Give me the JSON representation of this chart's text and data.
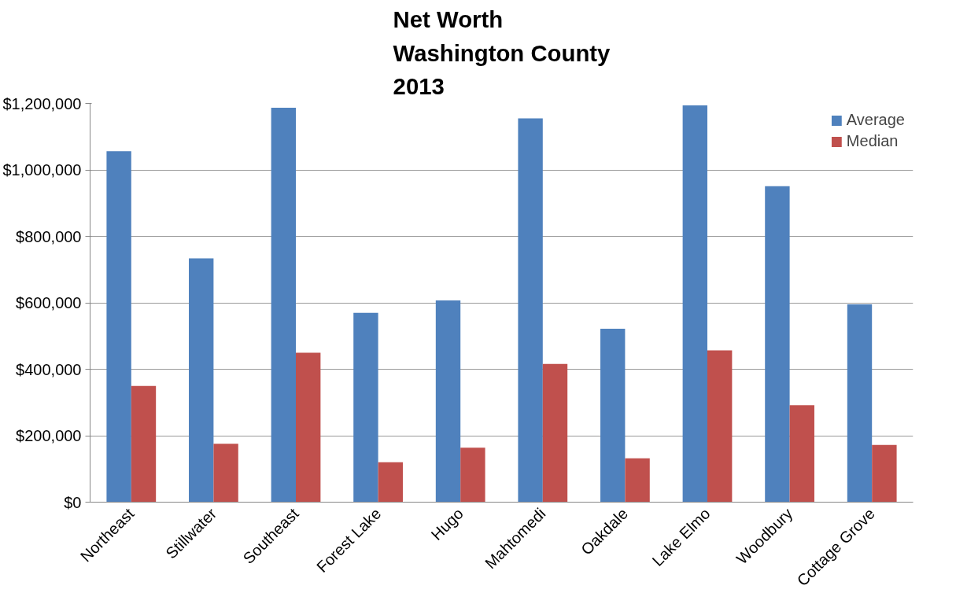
{
  "chart_data": {
    "type": "bar",
    "title": "Net Worth\nWashington County\n2013",
    "categories": [
      "Northeast",
      "Stillwater",
      "Southeast",
      "Forest Lake",
      "Hugo",
      "Mahtomedi",
      "Oakdale",
      "Lake Elmo",
      "Woodbury",
      "Cottage Grove"
    ],
    "series": [
      {
        "name": "Average",
        "color": "#4f81bd",
        "values": [
          1056000,
          734000,
          1187000,
          570000,
          607000,
          1155000,
          522000,
          1194000,
          951000,
          595000
        ]
      },
      {
        "name": "Median",
        "color": "#c0504d",
        "values": [
          350000,
          176000,
          450000,
          120000,
          164000,
          416000,
          132000,
          457000,
          292000,
          172000
        ]
      }
    ],
    "ylim": [
      0,
      1200000
    ],
    "yticks": [
      {
        "value": 0,
        "label": "$0"
      },
      {
        "value": 200000,
        "label": "$200,000"
      },
      {
        "value": 400000,
        "label": "$400,000"
      },
      {
        "value": 600000,
        "label": "$600,000"
      },
      {
        "value": 800000,
        "label": "$800,000"
      },
      {
        "value": 1000000,
        "label": "$1,000,000"
      },
      {
        "value": 1200000,
        "label": "$1,200,000"
      }
    ],
    "grid": "y",
    "legend": "top right"
  }
}
